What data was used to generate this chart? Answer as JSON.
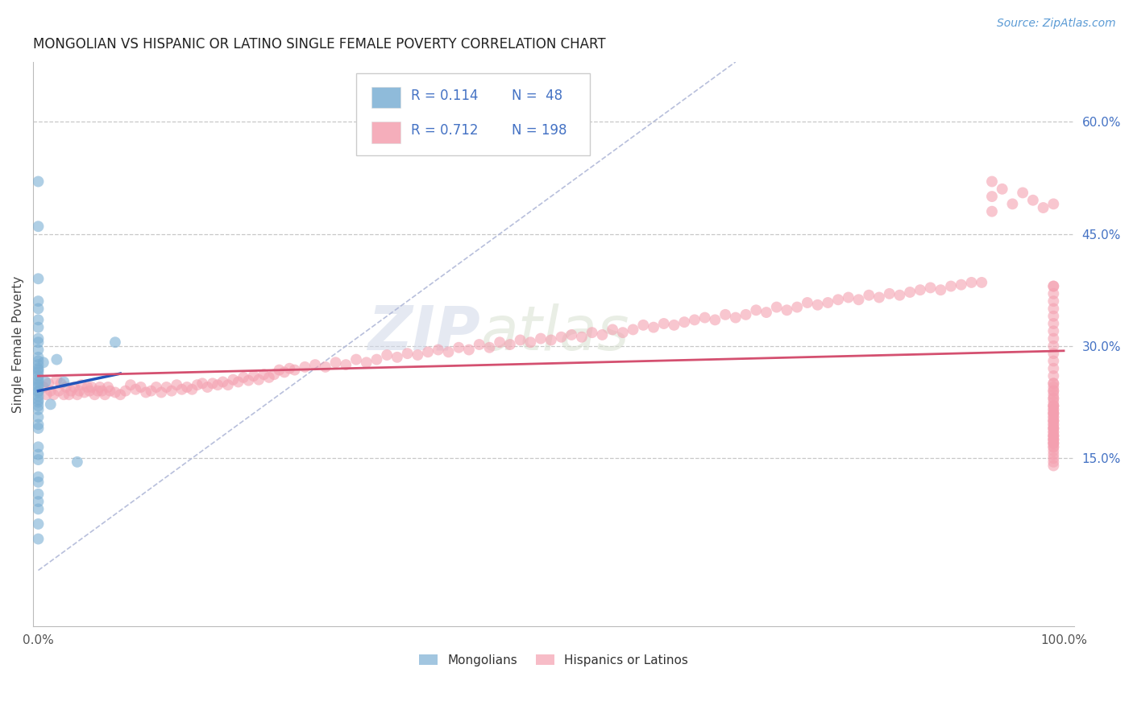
{
  "title": "MONGOLIAN VS HISPANIC OR LATINO SINGLE FEMALE POVERTY CORRELATION CHART",
  "source": "Source: ZipAtlas.com",
  "ylabel": "Single Female Poverty",
  "watermark_zip": "ZIP",
  "watermark_atlas": "atlas",
  "legend_r1": "R = 0.114",
  "legend_n1": "N =  48",
  "legend_r2": "R = 0.712",
  "legend_n2": "N = 198",
  "xlim": [
    -0.005,
    1.01
  ],
  "ylim": [
    -0.075,
    0.68
  ],
  "ytick_labels_right": [
    "60.0%",
    "45.0%",
    "30.0%",
    "15.0%"
  ],
  "ytick_vals_right": [
    0.6,
    0.45,
    0.3,
    0.15
  ],
  "title_color": "#222222",
  "source_color": "#5b9bd5",
  "grid_color": "#c8c8c8",
  "blue_scatter_color": "#7bafd4",
  "pink_scatter_color": "#f4a0b0",
  "legend_value_color": "#4472c4",
  "right_tick_color": "#4472c4",
  "diagonal_color": "#b0b8d8",
  "blue_line_color": "#2255bb",
  "pink_line_color": "#d45070",
  "mongolian_x": [
    0.0,
    0.0,
    0.0,
    0.0,
    0.0,
    0.0,
    0.0,
    0.0,
    0.0,
    0.0,
    0.0,
    0.0,
    0.0,
    0.0,
    0.0,
    0.0,
    0.0,
    0.0,
    0.0,
    0.0,
    0.0,
    0.0,
    0.0,
    0.0,
    0.0,
    0.0,
    0.0,
    0.0,
    0.0,
    0.0,
    0.0,
    0.0,
    0.0,
    0.0,
    0.0,
    0.0,
    0.0,
    0.0,
    0.0,
    0.0,
    0.0,
    0.005,
    0.007,
    0.012,
    0.018,
    0.025,
    0.038,
    0.075
  ],
  "mongolian_y": [
    0.52,
    0.46,
    0.39,
    0.36,
    0.35,
    0.335,
    0.325,
    0.31,
    0.305,
    0.295,
    0.285,
    0.28,
    0.275,
    0.27,
    0.268,
    0.265,
    0.26,
    0.255,
    0.252,
    0.248,
    0.245,
    0.24,
    0.238,
    0.233,
    0.228,
    0.225,
    0.22,
    0.215,
    0.205,
    0.195,
    0.19,
    0.165,
    0.155,
    0.148,
    0.125,
    0.118,
    0.102,
    0.092,
    0.082,
    0.062,
    0.042,
    0.278,
    0.252,
    0.222,
    0.282,
    0.252,
    0.145,
    0.305
  ],
  "hispanic_x": [
    0.005,
    0.008,
    0.01,
    0.012,
    0.015,
    0.018,
    0.02,
    0.022,
    0.025,
    0.027,
    0.03,
    0.032,
    0.035,
    0.038,
    0.04,
    0.042,
    0.045,
    0.048,
    0.05,
    0.052,
    0.055,
    0.058,
    0.06,
    0.062,
    0.065,
    0.068,
    0.07,
    0.075,
    0.08,
    0.085,
    0.09,
    0.095,
    0.1,
    0.105,
    0.11,
    0.115,
    0.12,
    0.125,
    0.13,
    0.135,
    0.14,
    0.145,
    0.15,
    0.155,
    0.16,
    0.165,
    0.17,
    0.175,
    0.18,
    0.185,
    0.19,
    0.195,
    0.2,
    0.205,
    0.21,
    0.215,
    0.22,
    0.225,
    0.23,
    0.235,
    0.24,
    0.245,
    0.25,
    0.26,
    0.27,
    0.28,
    0.29,
    0.3,
    0.31,
    0.32,
    0.33,
    0.34,
    0.35,
    0.36,
    0.37,
    0.38,
    0.39,
    0.4,
    0.41,
    0.42,
    0.43,
    0.44,
    0.45,
    0.46,
    0.47,
    0.48,
    0.49,
    0.5,
    0.51,
    0.52,
    0.53,
    0.54,
    0.55,
    0.56,
    0.57,
    0.58,
    0.59,
    0.6,
    0.61,
    0.62,
    0.63,
    0.64,
    0.65,
    0.66,
    0.67,
    0.68,
    0.69,
    0.7,
    0.71,
    0.72,
    0.73,
    0.74,
    0.75,
    0.76,
    0.77,
    0.78,
    0.79,
    0.8,
    0.81,
    0.82,
    0.83,
    0.84,
    0.85,
    0.86,
    0.87,
    0.88,
    0.89,
    0.9,
    0.91,
    0.92,
    0.93,
    0.93,
    0.93,
    0.94,
    0.95,
    0.96,
    0.97,
    0.98,
    0.99,
    0.99,
    0.99,
    0.99,
    0.99,
    0.99,
    0.99,
    0.99,
    0.99,
    0.99,
    0.99,
    0.99,
    0.99,
    0.99,
    0.99,
    0.99,
    0.99,
    0.99,
    0.99,
    0.99,
    0.99,
    0.99,
    0.99,
    0.99,
    0.99,
    0.99,
    0.99,
    0.99,
    0.99,
    0.99,
    0.99,
    0.99,
    0.99,
    0.99,
    0.99,
    0.99,
    0.99,
    0.99,
    0.99,
    0.99,
    0.99,
    0.99,
    0.99,
    0.99,
    0.99,
    0.99,
    0.99,
    0.99,
    0.99,
    0.99,
    0.99,
    0.99,
    0.99,
    0.99,
    0.99,
    0.99,
    0.99,
    0.99,
    0.99,
    0.99
  ],
  "hispanic_y": [
    0.245,
    0.235,
    0.25,
    0.24,
    0.235,
    0.255,
    0.24,
    0.25,
    0.235,
    0.245,
    0.235,
    0.24,
    0.245,
    0.235,
    0.24,
    0.248,
    0.238,
    0.245,
    0.24,
    0.245,
    0.235,
    0.24,
    0.245,
    0.24,
    0.235,
    0.245,
    0.24,
    0.238,
    0.235,
    0.24,
    0.248,
    0.242,
    0.245,
    0.238,
    0.24,
    0.245,
    0.238,
    0.245,
    0.24,
    0.248,
    0.242,
    0.245,
    0.242,
    0.248,
    0.25,
    0.245,
    0.25,
    0.248,
    0.252,
    0.248,
    0.255,
    0.252,
    0.258,
    0.254,
    0.26,
    0.255,
    0.262,
    0.258,
    0.262,
    0.268,
    0.265,
    0.27,
    0.268,
    0.272,
    0.275,
    0.272,
    0.278,
    0.275,
    0.282,
    0.278,
    0.282,
    0.288,
    0.285,
    0.29,
    0.288,
    0.292,
    0.295,
    0.292,
    0.298,
    0.295,
    0.302,
    0.298,
    0.305,
    0.302,
    0.308,
    0.305,
    0.31,
    0.308,
    0.312,
    0.315,
    0.312,
    0.318,
    0.315,
    0.322,
    0.318,
    0.322,
    0.328,
    0.325,
    0.33,
    0.328,
    0.332,
    0.335,
    0.338,
    0.335,
    0.342,
    0.338,
    0.342,
    0.348,
    0.345,
    0.352,
    0.348,
    0.352,
    0.358,
    0.355,
    0.358,
    0.362,
    0.365,
    0.362,
    0.368,
    0.365,
    0.37,
    0.368,
    0.372,
    0.375,
    0.378,
    0.375,
    0.38,
    0.382,
    0.385,
    0.385,
    0.5,
    0.52,
    0.48,
    0.51,
    0.49,
    0.505,
    0.495,
    0.485,
    0.49,
    0.38,
    0.38,
    0.37,
    0.36,
    0.35,
    0.34,
    0.33,
    0.32,
    0.31,
    0.3,
    0.29,
    0.28,
    0.27,
    0.26,
    0.25,
    0.24,
    0.23,
    0.22,
    0.21,
    0.2,
    0.19,
    0.18,
    0.175,
    0.17,
    0.165,
    0.22,
    0.215,
    0.21,
    0.205,
    0.2,
    0.195,
    0.19,
    0.185,
    0.18,
    0.175,
    0.17,
    0.25,
    0.245,
    0.24,
    0.235,
    0.23,
    0.225,
    0.22,
    0.215,
    0.21,
    0.205,
    0.2,
    0.195,
    0.19,
    0.185,
    0.18,
    0.175,
    0.17,
    0.165,
    0.16,
    0.155,
    0.15,
    0.145,
    0.14
  ]
}
